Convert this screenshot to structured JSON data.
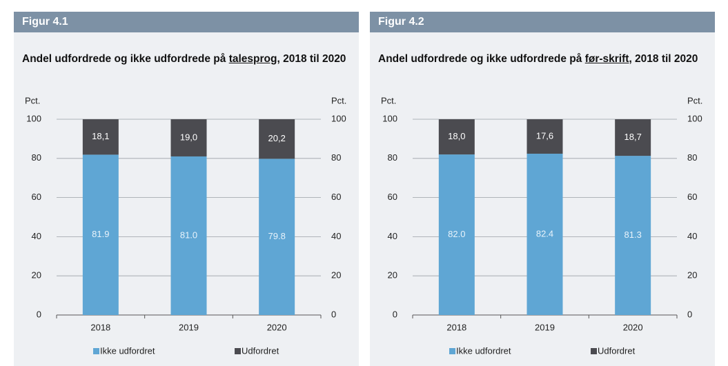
{
  "chart_data": [
    {
      "type": "stacked_bar",
      "figure_label": "Figur 4.1",
      "title_segments": [
        "Andel udfordrede og ikke udfordrede på ",
        "talesprog",
        ", 2018 til 2020"
      ],
      "y_axis_label": "Pct.",
      "y2_axis_label": "Pct.",
      "categories": [
        "2018",
        "2019",
        "2020"
      ],
      "series": [
        {
          "name": "Ikke udfordret",
          "color": "#5fa6d4",
          "values": [
            81.9,
            81.0,
            79.8
          ],
          "value_labels": [
            "81.9",
            "81.0",
            "79.8"
          ]
        },
        {
          "name": "Udfordret",
          "color": "#4b4b50",
          "values": [
            18.1,
            19.0,
            20.2
          ],
          "value_labels": [
            "18,1",
            "19,0",
            "20,2"
          ]
        }
      ],
      "ylim": [
        0,
        100
      ],
      "yticks": [
        0,
        20,
        40,
        60,
        80,
        100
      ],
      "y2lim": [
        0,
        100
      ],
      "y2ticks": [
        0,
        20,
        40,
        60,
        80,
        100
      ],
      "grid": true
    },
    {
      "type": "stacked_bar",
      "figure_label": "Figur 4.2",
      "title_segments": [
        "Andel udfordrede og ikke udfordrede på ",
        "før-skrift",
        ", 2018 til 2020"
      ],
      "y_axis_label": "Pct.",
      "y2_axis_label": "Pct.",
      "categories": [
        "2018",
        "2019",
        "2020"
      ],
      "series": [
        {
          "name": "Ikke udfordret",
          "color": "#5fa6d4",
          "values": [
            82.0,
            82.4,
            81.3
          ],
          "value_labels": [
            "82.0",
            "82.4",
            "81.3"
          ]
        },
        {
          "name": "Udfordret",
          "color": "#4b4b50",
          "values": [
            18.0,
            17.6,
            18.7
          ],
          "value_labels": [
            "18,0",
            "17,6",
            "18,7"
          ]
        }
      ],
      "ylim": [
        0,
        100
      ],
      "yticks": [
        0,
        20,
        40,
        60,
        80,
        100
      ],
      "y2lim": [
        0,
        100
      ],
      "y2ticks": [
        0,
        20,
        40,
        60,
        80,
        100
      ],
      "grid": true
    }
  ]
}
